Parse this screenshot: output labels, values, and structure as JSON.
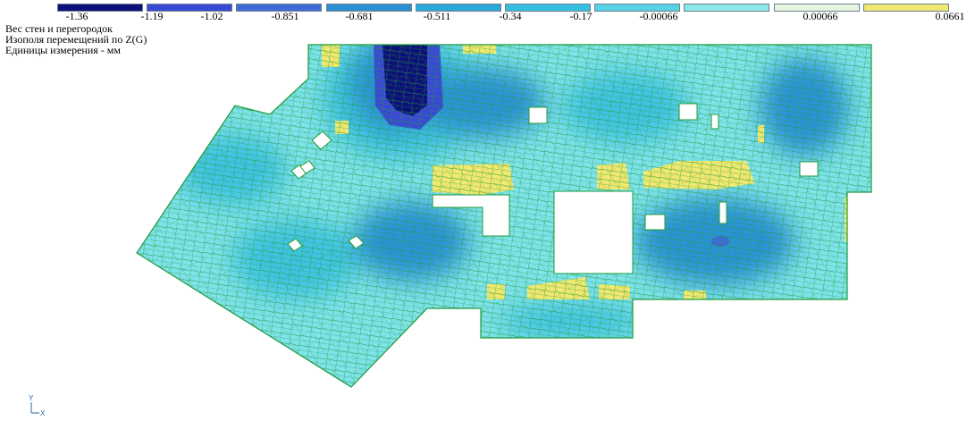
{
  "legend": {
    "ticks": [
      "-1.36",
      "-1.19",
      "-1.02",
      "-0.851",
      "-0.681",
      "-0.511",
      "-0.34",
      "-0.17",
      "-0.00066",
      "0.00066",
      "0.0661"
    ],
    "colors": [
      "#0d1078",
      "#3a48d6",
      "#3f6bd8",
      "#2b8fcf",
      "#2aa8d8",
      "#35c0e0",
      "#55d2e4",
      "#8be8ea",
      "#e4f6e0",
      "#f0e870"
    ]
  },
  "caption": {
    "line1": "Вес стен и перегородок",
    "line2": "Изополя  перемещений по Z(G)",
    "line3": "Единицы измерения - мм"
  },
  "axes": {
    "y_label": "Y",
    "x_label": "X"
  },
  "palette": {
    "mesh": "#1f9a3a",
    "base": "#7fe3ea",
    "mid": "#3fc3e2",
    "deep": "#2a93d6",
    "dark": "#0d1078",
    "yellow": "#f0e870"
  }
}
